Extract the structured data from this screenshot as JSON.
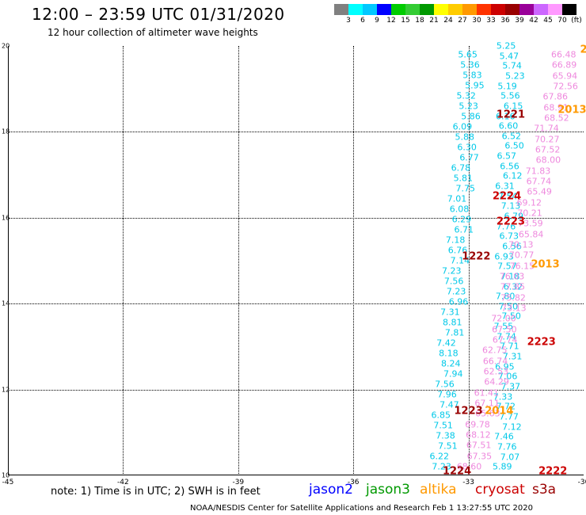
{
  "header": {
    "title": "12:00 – 23:59 UTC 01/31/2020",
    "subtitle": "12 hour collection of altimeter wave heights"
  },
  "colorbar": {
    "colors": [
      "#808080",
      "#00ffff",
      "#00c8ff",
      "#0000ff",
      "#00cc00",
      "#33cc33",
      "#009900",
      "#ffff00",
      "#ffcc00",
      "#ff9900",
      "#ff3300",
      "#cc0000",
      "#990000",
      "#990099",
      "#cc66ff",
      "#ff99ff",
      "#000000"
    ],
    "labels": [
      "3",
      "6",
      "9",
      "12",
      "15",
      "18",
      "21",
      "24",
      "27",
      "30",
      "33",
      "36",
      "39",
      "42",
      "45",
      "70",
      "(ft)"
    ]
  },
  "axes": {
    "x_ticks": [
      "-45",
      "-42",
      "-39",
      "-36",
      "-33",
      "-30"
    ],
    "y_ticks": [
      "20",
      "18",
      "16",
      "14",
      "12",
      "10"
    ]
  },
  "map": {
    "lon_range": [
      -45,
      -30
    ],
    "lat_range": [
      10,
      20
    ]
  },
  "footer": {
    "note": "note: 1) Time is in UTC; 2) SWH is in feet",
    "satellites": [
      {
        "name": "jason2",
        "color": "#0000ff"
      },
      {
        "name": "jason3",
        "color": "#009900"
      },
      {
        "name": "altika",
        "color": "#ff9900"
      },
      {
        "name": "cryosat",
        "color": "#cc0000"
      },
      {
        "name": "s3a",
        "color": "#990000"
      }
    ],
    "credit": "NOAA/NESDIS Center for Satellite Applications and Research   Feb  1 13:27:55 UTC 2020"
  },
  "tracks": [
    {
      "name": "track-a",
      "color": "#00c8e8",
      "values": [
        "5.65",
        "5.36",
        "5.83",
        "5.95",
        "5.32",
        "5.23",
        "5.86",
        "6.09",
        "5.88",
        "6.30",
        "6.77",
        "6.78",
        "5.81",
        "7.75",
        "7.01",
        "6.08",
        "6.29",
        "6.71",
        "7.18",
        "6.76",
        "7.14",
        "7.23",
        "7.56",
        "7.23",
        "6.96",
        "7.31",
        "8.81",
        "7.81",
        "7.42",
        "8.18",
        "8.24",
        "7.94",
        "7.56",
        "7.96",
        "7.47",
        "6.85",
        "7.51",
        "7.38",
        "7.51",
        "6.22",
        "7.23"
      ]
    },
    {
      "name": "track-b",
      "color": "#00c8e8",
      "values": [
        "5.25",
        "5.47",
        "5.74",
        "5.23",
        "5.19",
        "5.56",
        "6.15",
        "6.16",
        "6.60",
        "6.52",
        "6.50",
        "6.57",
        "6.56",
        "6.12",
        "6.31",
        "7.54",
        "7.13",
        "6.79",
        "7.76",
        "6.73",
        "6.56",
        "6.93",
        "7.57",
        "7.18",
        "6.32",
        "7.80",
        "7.50",
        "7.50",
        "7.55",
        "7.74",
        "7.71",
        "7.31",
        "6.95",
        "7.06",
        "7.37",
        "7.33",
        "7.72",
        "7.77",
        "7.12",
        "7.46",
        "7.76",
        "7.07",
        "5.89"
      ]
    },
    {
      "name": "track-c",
      "color": "#ee88dd",
      "values": [
        "66.48",
        "66.89",
        "65.94",
        "72.56",
        "67.86",
        "68.91",
        "68.52",
        "71.74",
        "70.27",
        "67.52",
        "68.00",
        "71.83",
        "67.74",
        "65.49",
        "69.12",
        "70.21",
        "73.59",
        "65.84",
        "70.13",
        "70.77",
        "76.15",
        "76.03",
        "77.85",
        "75.82",
        "73.13",
        "72.00",
        "67.50",
        "67.74",
        "62.75",
        "66.74",
        "62.53",
        "64.29",
        "61.41",
        "67.11",
        "65.63",
        "69.78",
        "68.12",
        "67.51",
        "67.35",
        "68.60"
      ]
    }
  ],
  "times": [
    {
      "label": "1221",
      "color": "#990000",
      "lon": -31.9,
      "lat": 18.4
    },
    {
      "label": "2013",
      "color": "#ff9900",
      "lon": -30.3,
      "lat": 18.5
    },
    {
      "label": "2224",
      "color": "#cc0000",
      "lon": -32.0,
      "lat": 16.5
    },
    {
      "label": "2223",
      "color": "#cc0000",
      "lon": -31.9,
      "lat": 15.9
    },
    {
      "label": "1222",
      "color": "#990000",
      "lon": -32.8,
      "lat": 15.1
    },
    {
      "label": "2013",
      "color": "#ff9900",
      "lon": -31.0,
      "lat": 14.9
    },
    {
      "label": "2223",
      "color": "#cc0000",
      "lon": -31.1,
      "lat": 13.1
    },
    {
      "label": "1223",
      "color": "#990000",
      "lon": -33.0,
      "lat": 11.5
    },
    {
      "label": "2014",
      "color": "#ff9900",
      "lon": -32.2,
      "lat": 11.5
    },
    {
      "label": "1224",
      "color": "#990000",
      "lon": -33.3,
      "lat": 10.1
    },
    {
      "label": "2222",
      "color": "#cc0000",
      "lon": -30.8,
      "lat": 10.1
    },
    {
      "label": "2",
      "color": "#ff9900",
      "lon": -30.0,
      "lat": 19.9
    }
  ]
}
